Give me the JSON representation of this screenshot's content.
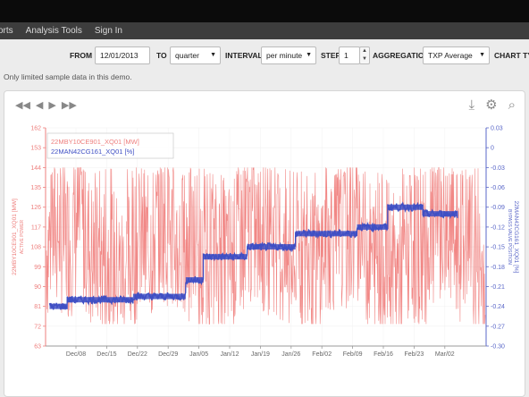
{
  "nav": {
    "items": [
      "orts",
      "Analysis Tools",
      "Sign In"
    ]
  },
  "controls": {
    "from_label": "FROM",
    "from_value": "12/01/2013",
    "to_label": "TO",
    "to_value": "quarter",
    "interval_label": "INTERVAL",
    "interval_value": "per minute",
    "step_label": "STEP",
    "step_value": "1",
    "aggregation_label": "AGGREGATION",
    "aggregation_value": "TXP Average",
    "chart_type_label": "CHART TYP"
  },
  "notice": "Only limited sample data in this demo.",
  "icons": {
    "nav_left": [
      "double-arrow-left-icon",
      "arrow-left-icon",
      "arrow-right-icon",
      "double-arrow-right-icon"
    ],
    "tools": [
      "download-icon",
      "gear-icon",
      "search-icon"
    ]
  },
  "colors": {
    "red": "#f07a78",
    "blue": "#3f4fc4",
    "axis_left": "#ee7f7d",
    "axis_right": "#5a67c8"
  },
  "chart_data": {
    "type": "line",
    "title": "",
    "legend": [
      "22MBY10CE901_XQ01 [MW]",
      "22MAN42CG161_XQ01 [%]"
    ],
    "y_left": {
      "label_line1": "22MBY10CE901_XQ01 [MW]",
      "label_line2": "ACTIVE POWER",
      "ticks": [
        "162",
        "153",
        "144",
        "135",
        "126",
        "117",
        "108",
        "99",
        "90",
        "81",
        "72",
        "63"
      ],
      "range": [
        63,
        162
      ]
    },
    "y_right": {
      "label_line1": "22MAN42CG161_XQ01 [%]",
      "label_line2": "BYPASS VALVE POSITION",
      "ticks": [
        "0.03",
        "0",
        "-0.03",
        "-0.06",
        "-0.09",
        "-0.12",
        "-0.15",
        "-0.18",
        "-0.21",
        "-0.24",
        "-0.27",
        "-0.30"
      ],
      "range": [
        -0.3,
        0.03
      ]
    },
    "x_ticks": [
      "Dec/08",
      "Dec/15",
      "Dec/22",
      "Dec/29",
      "Jan/05",
      "Jan/12",
      "Jan/19",
      "Jan/26",
      "Feb/02",
      "Feb/09",
      "Feb/16",
      "Feb/23",
      "Mar/02"
    ],
    "series": [
      {
        "name": "22MBY10CE901_XQ01 [MW]",
        "axis": "left",
        "range_estimate": [
          74,
          140
        ]
      },
      {
        "name": "22MAN42CG161_XQ01 [%]",
        "axis": "right",
        "steps": [
          {
            "from": "Dec/01",
            "to": "Dec/05",
            "value": -0.24
          },
          {
            "from": "Dec/05",
            "to": "Dec/14",
            "value": -0.23
          },
          {
            "from": "Dec/14",
            "to": "Dec/20",
            "value": -0.23
          },
          {
            "from": "Dec/20",
            "to": "Jan/01",
            "value": -0.225
          },
          {
            "from": "Jan/01",
            "to": "Jan/05",
            "value": -0.2
          },
          {
            "from": "Jan/05",
            "to": "Jan/15",
            "value": -0.165
          },
          {
            "from": "Jan/15",
            "to": "Jan/26",
            "value": -0.15
          },
          {
            "from": "Jan/26",
            "to": "Feb/09",
            "value": -0.13
          },
          {
            "from": "Feb/09",
            "to": "Feb/16",
            "value": -0.12
          },
          {
            "from": "Feb/16",
            "to": "Feb/24",
            "value": -0.09
          },
          {
            "from": "Feb/24",
            "to": "Mar/04",
            "value": -0.1
          }
        ]
      }
    ]
  }
}
